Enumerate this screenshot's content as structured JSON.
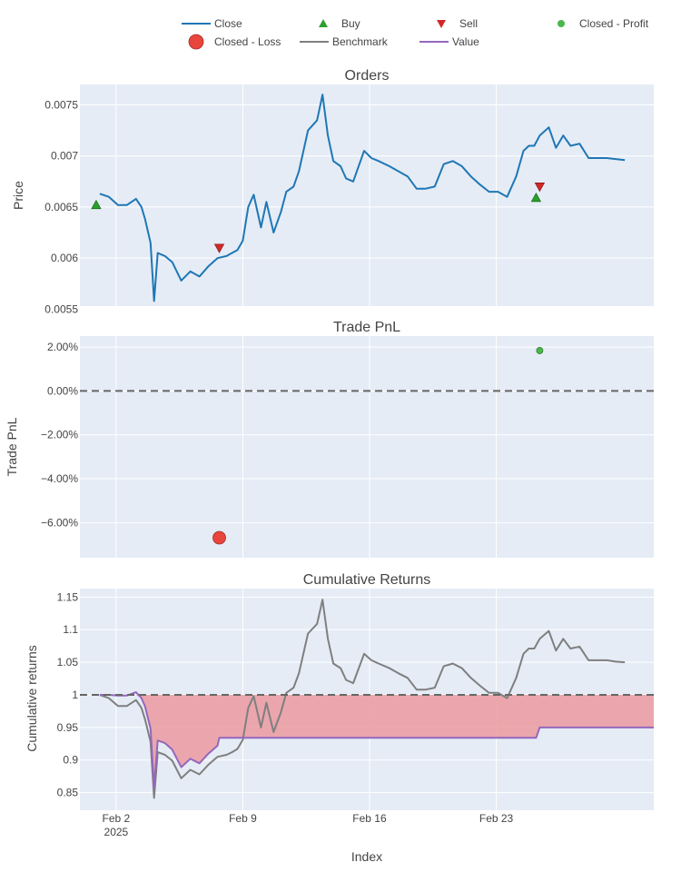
{
  "colors": {
    "close": "#1f77b4",
    "buy": "#2ca02c",
    "sell": "#d62728",
    "closed_profit": "#4bb64b",
    "closed_loss": "#e8453c",
    "benchmark": "#7f7f7f",
    "value": "#9467bd",
    "drawdown_fill": "#ea9fa4",
    "plot_bg": "#e5ecf6",
    "grid": "#ffffff"
  },
  "legend": [
    {
      "label": "Close",
      "symbol": "line",
      "color": "#1f77b4"
    },
    {
      "label": "Buy",
      "symbol": "triangle-up",
      "color": "#2ca02c"
    },
    {
      "label": "Sell",
      "symbol": "triangle-down",
      "color": "#d62728"
    },
    {
      "label": "Closed - Profit",
      "symbol": "circle-small",
      "color": "#4bb64b"
    },
    {
      "label": "Closed - Loss",
      "symbol": "circle-large",
      "color": "#e8453c"
    },
    {
      "label": "Benchmark",
      "symbol": "line",
      "color": "#7f7f7f"
    },
    {
      "label": "Value",
      "symbol": "line",
      "color": "#9467bd"
    }
  ],
  "xaxis": {
    "title": "Index",
    "range": [
      -1.1,
      30.6
    ],
    "ticks": [
      {
        "value": 0.9,
        "label": "Feb 2",
        "sublabel": "2025"
      },
      {
        "value": 7.9,
        "label": "Feb 9",
        "sublabel": ""
      },
      {
        "value": 14.9,
        "label": "Feb 16",
        "sublabel": ""
      },
      {
        "value": 21.9,
        "label": "Feb 23",
        "sublabel": ""
      }
    ]
  },
  "chart_data": [
    {
      "type": "line",
      "title": "Orders",
      "ylabel": "Price",
      "ylim": [
        0.00553,
        0.0077
      ],
      "yticks": [
        {
          "value": 0.0055,
          "label": "0.0055"
        },
        {
          "value": 0.006,
          "label": "0.006"
        },
        {
          "value": 0.0065,
          "label": "0.0065"
        },
        {
          "value": 0.007,
          "label": "0.007"
        },
        {
          "value": 0.0075,
          "label": "0.0075"
        }
      ],
      "series": [
        {
          "name": "Close",
          "x": [
            0,
            0.5,
            1,
            1.5,
            2,
            2.3,
            2.5,
            2.8,
            3,
            3.2,
            3.6,
            4,
            4.5,
            5,
            5.5,
            6,
            6.5,
            7,
            7.3,
            7.6,
            7.9,
            8.2,
            8.5,
            8.9,
            9.2,
            9.6,
            10,
            10.3,
            10.7,
            11,
            11.5,
            12,
            12.3,
            12.6,
            12.9,
            13.3,
            13.6,
            14,
            14.6,
            15,
            15.4,
            16,
            16.5,
            17,
            17.5,
            18,
            18.5,
            19,
            19.5,
            20,
            20.5,
            21,
            21.5,
            22,
            22.5,
            23,
            23.4,
            23.7,
            24,
            24.3,
            24.8,
            25.2,
            25.6,
            26,
            26.5,
            27,
            27.5,
            28,
            28.5,
            29
          ],
          "y": [
            0.00663,
            0.0066,
            0.00652,
            0.00652,
            0.00658,
            0.0065,
            0.00638,
            0.00615,
            0.00558,
            0.00605,
            0.00602,
            0.00596,
            0.00578,
            0.00587,
            0.00582,
            0.00592,
            0.006,
            0.00602,
            0.00605,
            0.00608,
            0.00617,
            0.0065,
            0.00662,
            0.0063,
            0.00655,
            0.00625,
            0.00645,
            0.00665,
            0.0067,
            0.00685,
            0.00725,
            0.00735,
            0.0076,
            0.0072,
            0.00695,
            0.0069,
            0.00678,
            0.00675,
            0.00705,
            0.00698,
            0.00695,
            0.0069,
            0.00685,
            0.0068,
            0.00668,
            0.00668,
            0.0067,
            0.00692,
            0.00695,
            0.0069,
            0.0068,
            0.00672,
            0.00665,
            0.00665,
            0.0066,
            0.0068,
            0.00705,
            0.0071,
            0.0071,
            0.0072,
            0.00728,
            0.00708,
            0.0072,
            0.0071,
            0.00712,
            0.00698,
            0.00698,
            0.00698,
            0.00697,
            0.00696
          ]
        }
      ],
      "markers": {
        "buy": [
          {
            "x": -0.2,
            "y": 0.00652
          },
          {
            "x": 24.1,
            "y": 0.00659
          }
        ],
        "sell": [
          {
            "x": 6.6,
            "y": 0.0061
          },
          {
            "x": 24.3,
            "y": 0.0067
          }
        ]
      }
    },
    {
      "type": "scatter",
      "title": "Trade PnL",
      "ylabel": "Trade PnL",
      "ylim": [
        -0.076,
        0.025
      ],
      "yticks": [
        {
          "value": -0.06,
          "label": "−6.00%"
        },
        {
          "value": -0.04,
          "label": "−4.00%"
        },
        {
          "value": -0.02,
          "label": "−2.00%"
        },
        {
          "value": 0,
          "label": "0.00%"
        },
        {
          "value": 0.02,
          "label": "2.00%"
        }
      ],
      "zero_line": 0,
      "points": [
        {
          "series": "Closed - Profit",
          "x": 24.3,
          "y": 0.0184
        },
        {
          "series": "Closed - Loss",
          "x": 6.6,
          "y": -0.0669
        }
      ]
    },
    {
      "type": "line",
      "title": "Cumulative Returns",
      "ylabel": "Cumulative returns",
      "ylim": [
        0.823,
        1.163
      ],
      "yticks": [
        {
          "value": 0.85,
          "label": "0.85"
        },
        {
          "value": 0.9,
          "label": "0.9"
        },
        {
          "value": 0.95,
          "label": "0.95"
        },
        {
          "value": 1,
          "label": "1"
        },
        {
          "value": 1.05,
          "label": "1.05"
        },
        {
          "value": 1.1,
          "label": "1.1"
        },
        {
          "value": 1.15,
          "label": "1.15"
        }
      ],
      "baseline": 1,
      "series": [
        {
          "name": "Benchmark",
          "x": [
            0,
            0.5,
            1,
            1.5,
            2,
            2.3,
            2.5,
            2.8,
            3,
            3.2,
            3.6,
            4,
            4.5,
            5,
            5.5,
            6,
            6.5,
            7,
            7.3,
            7.6,
            7.9,
            8.2,
            8.5,
            8.9,
            9.2,
            9.6,
            10,
            10.3,
            10.7,
            11,
            11.5,
            12,
            12.3,
            12.6,
            12.9,
            13.3,
            13.6,
            14,
            14.6,
            15,
            15.4,
            16,
            16.5,
            17,
            17.5,
            18,
            18.5,
            19,
            19.5,
            20,
            20.5,
            21,
            21.5,
            22,
            22.5,
            23,
            23.4,
            23.7,
            24,
            24.3,
            24.8,
            25.2,
            25.6,
            26,
            26.5,
            27,
            27.5,
            28,
            28.5,
            29
          ],
          "y": [
            1.0,
            0.995,
            0.983,
            0.983,
            0.992,
            0.98,
            0.962,
            0.928,
            0.842,
            0.912,
            0.908,
            0.899,
            0.872,
            0.885,
            0.878,
            0.893,
            0.905,
            0.908,
            0.912,
            0.917,
            0.931,
            0.98,
            0.998,
            0.95,
            0.988,
            0.943,
            0.973,
            1.003,
            1.011,
            1.033,
            1.094,
            1.109,
            1.146,
            1.086,
            1.048,
            1.041,
            1.023,
            1.018,
            1.063,
            1.053,
            1.048,
            1.041,
            1.033,
            1.026,
            1.008,
            1.008,
            1.011,
            1.044,
            1.048,
            1.041,
            1.026,
            1.014,
            1.003,
            1.003,
            0.995,
            1.026,
            1.063,
            1.071,
            1.071,
            1.086,
            1.098,
            1.068,
            1.086,
            1.071,
            1.074,
            1.053,
            1.053,
            1.053,
            1.051,
            1.05
          ]
        },
        {
          "name": "Value",
          "x": [
            0,
            0.5,
            1,
            1.5,
            2,
            2.3,
            2.5,
            2.8,
            3,
            3.2,
            3.6,
            4,
            4.5,
            5,
            5.5,
            6,
            6.5,
            6.6,
            7,
            8,
            10,
            12,
            14,
            16,
            18,
            20,
            22,
            24.1,
            24.3,
            25,
            27,
            29
          ],
          "y": [
            1.0,
            1.0,
            0.999,
            0.999,
            1.004,
            0.995,
            0.982,
            0.948,
            0.857,
            0.93,
            0.926,
            0.916,
            0.889,
            0.902,
            0.895,
            0.91,
            0.922,
            0.934,
            0.934,
            0.934,
            0.934,
            0.934,
            0.934,
            0.934,
            0.934,
            0.934,
            0.934,
            0.934,
            0.95,
            0.95,
            0.95,
            0.95
          ]
        }
      ]
    }
  ]
}
